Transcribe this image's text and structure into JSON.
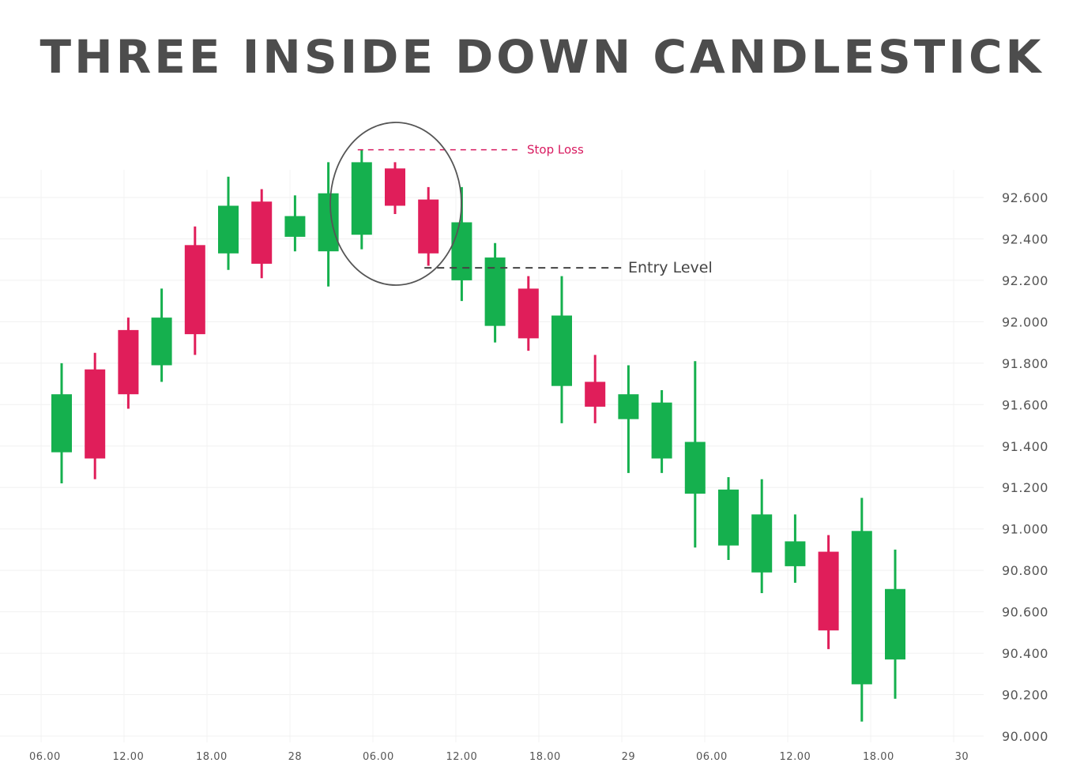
{
  "chart_data": {
    "type": "candlestick",
    "title": "THREE INSIDE DOWN CANDLESTICK",
    "colors": {
      "bullish": "#15b04e",
      "bearish": "#e01e5a",
      "stop_loss": "#d81b60",
      "entry": "#444444",
      "circle": "#555555"
    },
    "ylim": [
      90.0,
      92.75
    ],
    "y_ticks": [
      "92.600",
      "92.400",
      "92.200",
      "92.000",
      "91.800",
      "91.600",
      "91.400",
      "91.200",
      "91.000",
      "90.800",
      "90.600",
      "90.400",
      "90.200",
      "90.000"
    ],
    "y_tick_values": [
      92.6,
      92.4,
      92.2,
      92.0,
      91.8,
      91.6,
      91.4,
      91.2,
      91.0,
      90.8,
      90.6,
      90.4,
      90.2,
      90.0
    ],
    "x_ticks": [
      {
        "label": "06.00",
        "index": -0.5
      },
      {
        "label": "12.00",
        "index": 2
      },
      {
        "label": "18.00",
        "index": 4.5
      },
      {
        "label": "28",
        "index": 7
      },
      {
        "label": "06.00",
        "index": 9.5
      },
      {
        "label": "12.00",
        "index": 12
      },
      {
        "label": "18.00",
        "index": 14.5
      },
      {
        "label": "29",
        "index": 17
      },
      {
        "label": "06.00",
        "index": 19.5
      },
      {
        "label": "12.00",
        "index": 22
      },
      {
        "label": "18.00",
        "index": 24.5
      },
      {
        "label": "30",
        "index": 27
      }
    ],
    "grid": true,
    "candles": [
      {
        "open": 91.37,
        "high": 91.8,
        "low": 91.22,
        "close": 91.65
      },
      {
        "open": 91.77,
        "high": 91.85,
        "low": 91.24,
        "close": 91.34
      },
      {
        "open": 91.96,
        "high": 92.02,
        "low": 91.58,
        "close": 91.65
      },
      {
        "open": 91.79,
        "high": 92.16,
        "low": 91.71,
        "close": 92.02
      },
      {
        "open": 92.37,
        "high": 92.46,
        "low": 91.84,
        "close": 91.94
      },
      {
        "open": 92.33,
        "high": 92.7,
        "low": 92.25,
        "close": 92.56
      },
      {
        "open": 92.58,
        "high": 92.64,
        "low": 92.21,
        "close": 92.28
      },
      {
        "open": 92.41,
        "high": 92.61,
        "low": 92.34,
        "close": 92.51
      },
      {
        "open": 92.34,
        "high": 92.77,
        "low": 92.17,
        "close": 92.62
      },
      {
        "open": 92.42,
        "high": 92.83,
        "low": 92.35,
        "close": 92.77
      },
      {
        "open": 92.74,
        "high": 92.77,
        "low": 92.52,
        "close": 92.56
      },
      {
        "open": 92.59,
        "high": 92.65,
        "low": 92.27,
        "close": 92.33
      },
      {
        "open": 92.2,
        "high": 92.65,
        "low": 92.1,
        "close": 92.48
      },
      {
        "open": 91.98,
        "high": 92.38,
        "low": 91.9,
        "close": 92.31
      },
      {
        "open": 92.16,
        "high": 92.22,
        "low": 91.86,
        "close": 91.92
      },
      {
        "open": 91.69,
        "high": 92.22,
        "low": 91.51,
        "close": 92.03
      },
      {
        "open": 91.71,
        "high": 91.84,
        "low": 91.51,
        "close": 91.59
      },
      {
        "open": 91.53,
        "high": 91.79,
        "low": 91.27,
        "close": 91.65
      },
      {
        "open": 91.34,
        "high": 91.67,
        "low": 91.27,
        "close": 91.61
      },
      {
        "open": 91.17,
        "high": 91.81,
        "low": 90.91,
        "close": 91.42
      },
      {
        "open": 90.92,
        "high": 91.25,
        "low": 90.85,
        "close": 91.19
      },
      {
        "open": 90.79,
        "high": 91.24,
        "low": 90.69,
        "close": 91.07
      },
      {
        "open": 90.82,
        "high": 91.07,
        "low": 90.74,
        "close": 90.94
      },
      {
        "open": 90.89,
        "high": 90.97,
        "low": 90.42,
        "close": 90.51
      },
      {
        "open": 90.25,
        "high": 91.15,
        "low": 90.07,
        "close": 90.99
      },
      {
        "open": 90.37,
        "high": 90.9,
        "low": 90.18,
        "close": 90.71
      }
    ],
    "annotations": {
      "stop_loss": {
        "label": "Stop Loss",
        "value": 92.83
      },
      "entry_level": {
        "label": "Entry Level",
        "value": 92.26
      }
    }
  }
}
